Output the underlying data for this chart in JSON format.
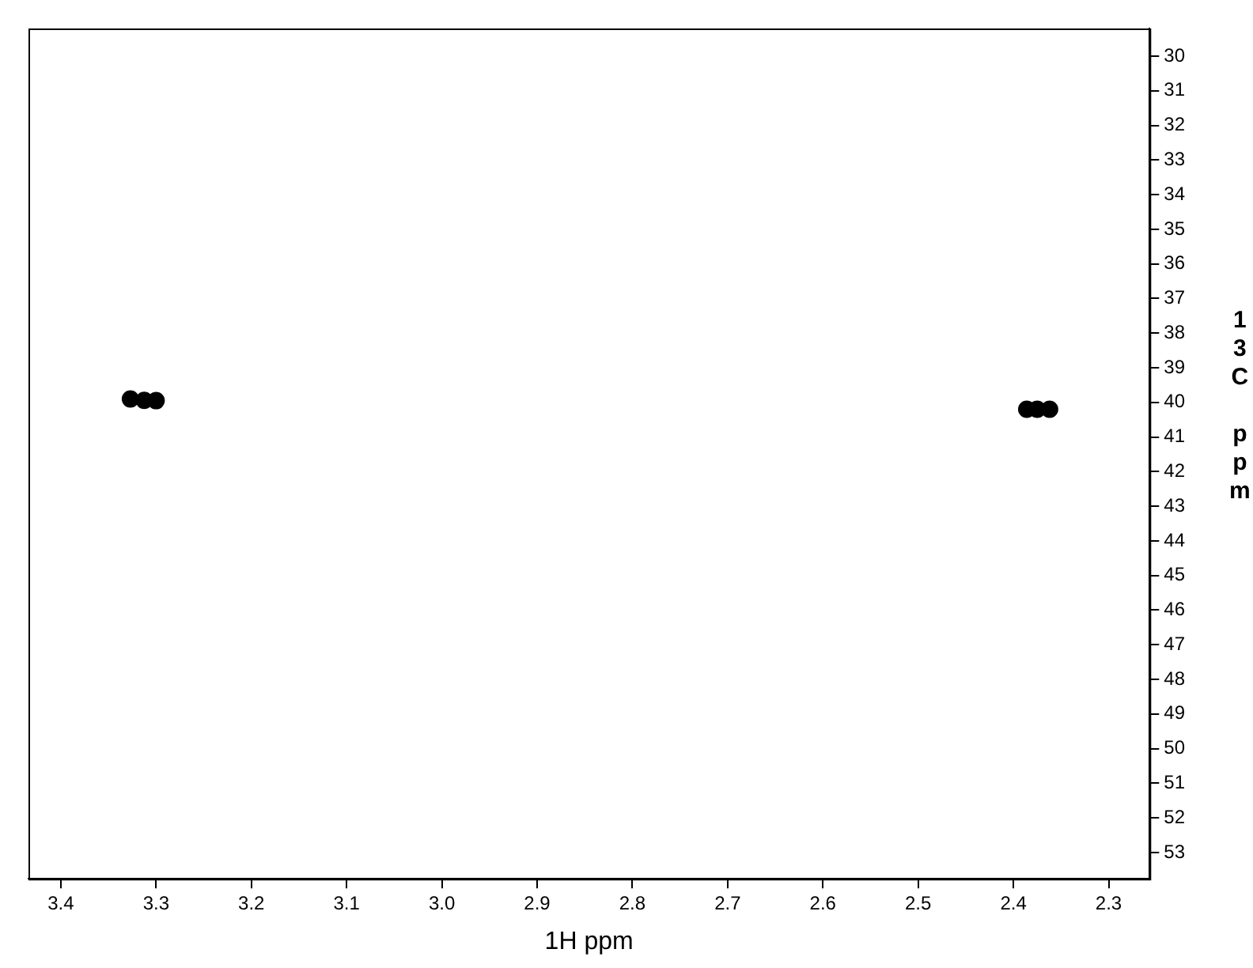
{
  "chart_data": {
    "type": "scatter",
    "xlabel": "1H ppm",
    "ylabel": "13C ppm",
    "series": [
      {
        "color": "#000000",
        "x": [
          3.327,
          3.3125,
          3.3,
          2.386,
          2.375,
          2.362
        ],
        "values": [
          39.9,
          39.94,
          39.95,
          40.2,
          40.2,
          40.2
        ]
      }
    ],
    "marker": "circle",
    "grid": false,
    "legend": false,
    "xlim": [
      3.434,
      2.257
    ],
    "ylim": [
      53.76,
      29.2
    ],
    "xticks": [
      3.4,
      3.3,
      3.2,
      3.1,
      {
        "value": 3,
        "label": "3.0"
      },
      2.9,
      2.8,
      2.7,
      2.6,
      2.5,
      2.4,
      2.3
    ],
    "yticks": [
      30,
      31,
      32,
      33,
      34,
      35,
      36,
      37,
      38,
      39,
      40,
      41,
      42,
      43,
      44,
      45,
      46,
      47,
      48,
      49,
      50,
      51,
      52,
      53
    ]
  }
}
